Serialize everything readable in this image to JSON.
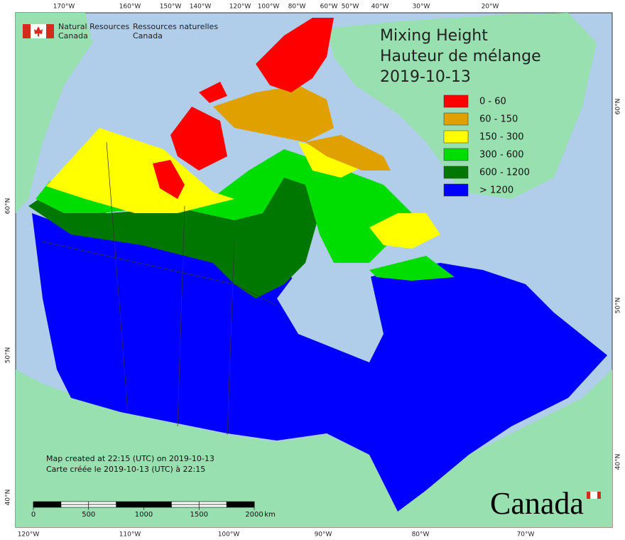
{
  "header": {
    "org_en": [
      "Natural Resources",
      "Canada"
    ],
    "org_fr": [
      "Ressources naturelles",
      "Canada"
    ]
  },
  "title": [
    "Mixing Height",
    "Hauteur de mélange",
    "2019-10-13"
  ],
  "legend": [
    {
      "label": "0 - 60",
      "color": "#ff0000"
    },
    {
      "label": "60 - 150",
      "color": "#e0a000"
    },
    {
      "label": "150 - 300",
      "color": "#ffff00"
    },
    {
      "label": "300 - 600",
      "color": "#00dd00"
    },
    {
      "label": "600 - 1200",
      "color": "#007700"
    },
    {
      "label": "> 1200",
      "color": "#0000ff"
    }
  ],
  "graticule": {
    "top": [
      "170°W",
      "160°W",
      "150°W",
      "140°W",
      "120°W",
      "100°W",
      "80°W",
      "60°W",
      "50°W",
      "40°W",
      "30°W",
      "20°W"
    ],
    "bottom": [
      "120°W",
      "110°W",
      "100°W",
      "90°W",
      "80°W",
      "70°W"
    ],
    "left": [
      "60°N",
      "50°N",
      "40°N"
    ],
    "right": [
      "60°N",
      "50°N",
      "40°N"
    ]
  },
  "notes": [
    "Map created at 22:15 (UTC) on 2019-10-13",
    "Carte créée le 2019-10-13 (UTC) à 22:15"
  ],
  "scale_bar": {
    "ticks": [
      0,
      500,
      1000,
      1500,
      2000
    ],
    "unit": "km"
  },
  "wordmark": "Canada"
}
